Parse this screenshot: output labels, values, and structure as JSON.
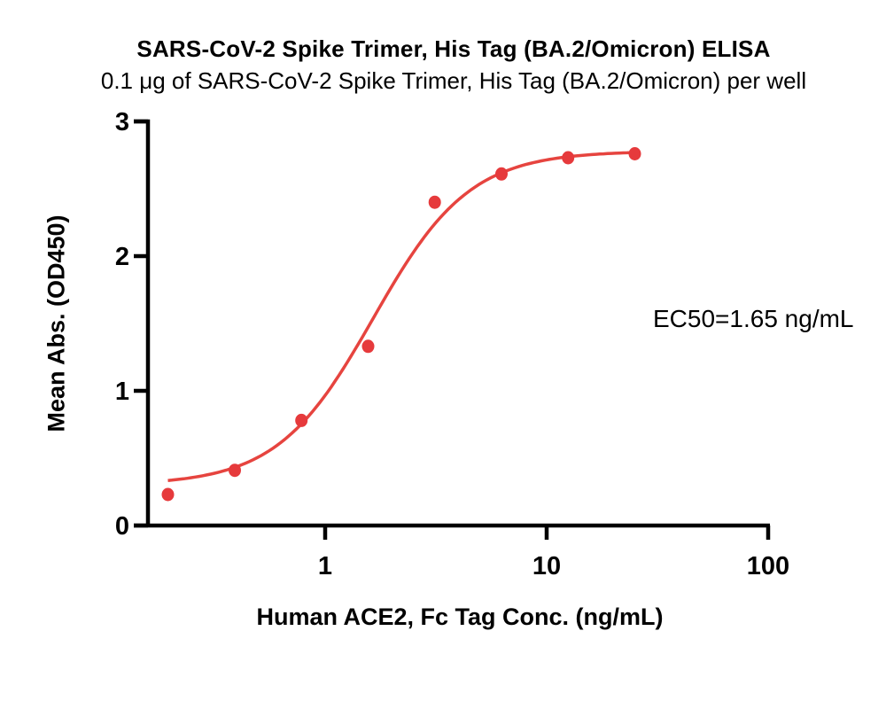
{
  "header": {
    "title": "SARS-CoV-2 Spike Trimer, His Tag (BA.2/Omicron) ELISA",
    "subtitle": "0.1 μg of SARS-CoV-2 Spike Trimer, His Tag (BA.2/Omicron) per well"
  },
  "chart_data": {
    "type": "scatter",
    "title": "SARS-CoV-2 Spike Trimer, His Tag (BA.2/Omicron) ELISA",
    "subtitle": "0.1 μg of SARS-CoV-2 Spike Trimer, His Tag (BA.2/Omicron) per well",
    "xlabel": "Human ACE2, Fc Tag Conc. (ng/mL)",
    "ylabel": "Mean Abs. (OD450)",
    "x_scale": "log",
    "xlim": [
      0.156,
      100
    ],
    "ylim": [
      0,
      3
    ],
    "x_ticks": [
      1,
      10,
      100
    ],
    "y_ticks": [
      0,
      1,
      2,
      3
    ],
    "x": [
      0.195,
      0.391,
      0.781,
      1.563,
      3.125,
      6.25,
      12.5,
      25
    ],
    "y": [
      0.23,
      0.41,
      0.78,
      1.33,
      2.4,
      2.61,
      2.73,
      2.76
    ],
    "fit_curve": {
      "model": "4PL",
      "ec50": 1.65,
      "hill": 2.0,
      "bottom": 0.3,
      "top": 2.78
    },
    "annotation": "EC50=1.65 ng/mL",
    "grid": false,
    "legend": "none",
    "colors": {
      "points": "#e63a3c",
      "curve": "#e6443f",
      "axis": "#000000",
      "text": "#000000"
    }
  }
}
